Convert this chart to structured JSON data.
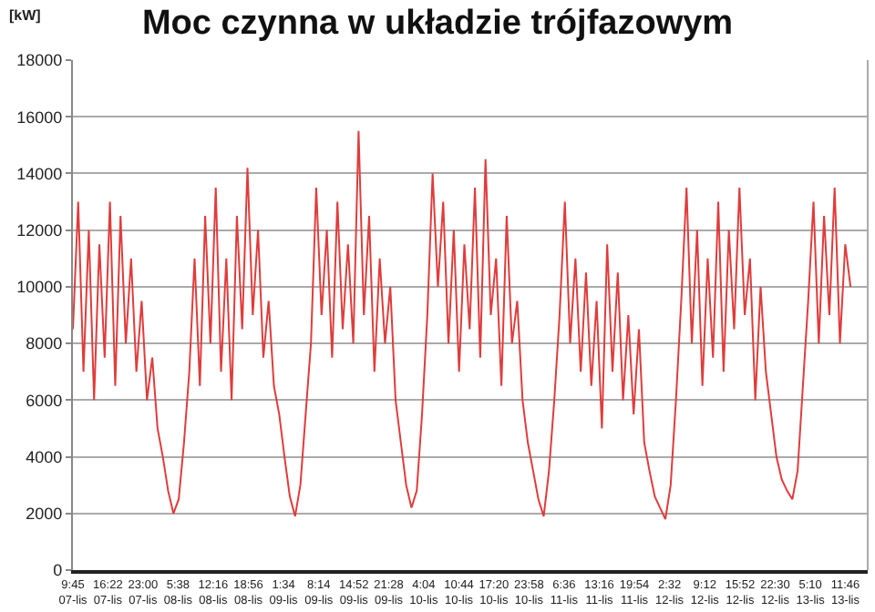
{
  "chart_data": {
    "type": "line",
    "title": "Moc czynna w układzie trójfazowym",
    "ylabel": "[kW]",
    "x": [
      "--11-07T09:45",
      "--11-07T10:45",
      "--11-07T11:45",
      "--11-07T12:45",
      "--11-07T13:45",
      "--11-07T14:45",
      "--11-07T15:45",
      "--11-07T16:45",
      "--11-07T17:45",
      "--11-07T18:45",
      "--11-07T19:45",
      "--11-07T20:45",
      "--11-07T21:45",
      "--11-07T22:45",
      "--11-07T23:45",
      "--11-08T00:45",
      "--11-08T01:45",
      "--11-08T02:45",
      "--11-08T03:45",
      "--11-08T04:45",
      "--11-08T05:45",
      "--11-08T06:45",
      "--11-08T07:45",
      "--11-08T08:45",
      "--11-08T09:45",
      "--11-08T10:45",
      "--11-08T11:45",
      "--11-08T12:45",
      "--11-08T13:45",
      "--11-08T14:45",
      "--11-08T15:45",
      "--11-08T16:45",
      "--11-08T17:45",
      "--11-08T18:45",
      "--11-08T19:45",
      "--11-08T20:45",
      "--11-08T21:45",
      "--11-08T22:45",
      "--11-08T23:45",
      "--11-09T00:45",
      "--11-09T01:45",
      "--11-09T02:45",
      "--11-09T03:45",
      "--11-09T04:45",
      "--11-09T05:45",
      "--11-09T06:45",
      "--11-09T07:45",
      "--11-09T08:45",
      "--11-09T09:45",
      "--11-09T10:45",
      "--11-09T11:45",
      "--11-09T12:45",
      "--11-09T13:45",
      "--11-09T14:45",
      "--11-09T15:45",
      "--11-09T16:45",
      "--11-09T17:45",
      "--11-09T18:45",
      "--11-09T19:45",
      "--11-09T20:45",
      "--11-09T21:45",
      "--11-09T22:45",
      "--11-09T23:45",
      "--11-10T00:45",
      "--11-10T01:45",
      "--11-10T02:45",
      "--11-10T03:45",
      "--11-10T04:45",
      "--11-10T05:45",
      "--11-10T06:45",
      "--11-10T07:45",
      "--11-10T08:45",
      "--11-10T09:45",
      "--11-10T10:45",
      "--11-10T11:45",
      "--11-10T12:45",
      "--11-10T13:45",
      "--11-10T14:45",
      "--11-10T15:45",
      "--11-10T16:45",
      "--11-10T17:45",
      "--11-10T18:45",
      "--11-10T19:45",
      "--11-10T20:45",
      "--11-10T21:45",
      "--11-10T22:45",
      "--11-10T23:45",
      "--11-11T00:45",
      "--11-11T01:45",
      "--11-11T02:45",
      "--11-11T03:45",
      "--11-11T04:45",
      "--11-11T05:45",
      "--11-11T06:45",
      "--11-11T07:45",
      "--11-11T08:45",
      "--11-11T09:45",
      "--11-11T10:45",
      "--11-11T11:45",
      "--11-11T12:45",
      "--11-11T13:45",
      "--11-11T14:45",
      "--11-11T15:45",
      "--11-11T16:45",
      "--11-11T17:45",
      "--11-11T18:45",
      "--11-11T19:45",
      "--11-11T20:45",
      "--11-11T21:45",
      "--11-11T22:45",
      "--11-11T23:45",
      "--11-12T00:45",
      "--11-12T01:45",
      "--11-12T02:45",
      "--11-12T03:45",
      "--11-12T04:45",
      "--11-12T05:45",
      "--11-12T06:45",
      "--11-12T07:45",
      "--11-12T08:45",
      "--11-12T09:45",
      "--11-12T10:45",
      "--11-12T11:45",
      "--11-12T12:45",
      "--11-12T13:45",
      "--11-12T14:45",
      "--11-12T15:45",
      "--11-12T16:45",
      "--11-12T17:45",
      "--11-12T18:45",
      "--11-12T19:45",
      "--11-12T20:45",
      "--11-12T21:45",
      "--11-12T22:45",
      "--11-12T23:45",
      "--11-13T00:45",
      "--11-13T01:45",
      "--11-13T02:45",
      "--11-13T03:45",
      "--11-13T04:45",
      "--11-13T05:45",
      "--11-13T06:45",
      "--11-13T07:45",
      "--11-13T08:45",
      "--11-13T09:45",
      "--11-13T10:45",
      "--11-13T11:45",
      "--11-13T12:45"
    ],
    "series": [
      {
        "color": "#e03c3c",
        "values": [
          8500,
          13000,
          7000,
          12000,
          6000,
          11500,
          7500,
          13000,
          6500,
          12500,
          8000,
          11000,
          7000,
          9500,
          6000,
          7500,
          5000,
          4000,
          2800,
          2000,
          2500,
          4500,
          7000,
          11000,
          6500,
          12500,
          8000,
          13500,
          7000,
          11000,
          6000,
          12500,
          8500,
          14200,
          9000,
          12000,
          7500,
          9500,
          6500,
          5500,
          4000,
          2600,
          1900,
          3000,
          5500,
          8000,
          13500,
          9000,
          12000,
          7500,
          13000,
          8500,
          11500,
          8000,
          15500,
          9000,
          12500,
          7000,
          11000,
          8000,
          10000,
          6000,
          4500,
          3000,
          2200,
          2800,
          5500,
          9000,
          14000,
          10000,
          13000,
          8000,
          12000,
          7000,
          11500,
          8500,
          13500,
          7500,
          14500,
          9000,
          11000,
          6500,
          12500,
          8000,
          9500,
          6000,
          4500,
          3500,
          2500,
          1900,
          3500,
          6000,
          9000,
          13000,
          8000,
          11000,
          7000,
          10500,
          6500,
          9500,
          5000,
          11500,
          7000,
          10500,
          6000,
          9000,
          5500,
          8500,
          4500,
          3500,
          2600,
          2200,
          1800,
          3000,
          6000,
          9500,
          13500,
          8000,
          12000,
          6500,
          11000,
          7500,
          13000,
          7000,
          12000,
          8500,
          13500,
          9000,
          11000,
          6000,
          10000,
          7000,
          5500,
          4000,
          3200,
          2800,
          2500,
          3500,
          6500,
          9500,
          13000,
          8000,
          12500,
          9000,
          13500,
          8000,
          11500,
          10000
        ]
      }
    ],
    "xlim": [
      "--11-07T09:45",
      "--11-13T16:00"
    ],
    "xticks": [
      {
        "value": "--11-07T09:45",
        "label": "9:45\n07-lis"
      },
      {
        "value": "--11-07T16:22",
        "label": "16:22\n07-lis"
      },
      {
        "value": "--11-07T23:00",
        "label": "23:00\n07-lis"
      },
      {
        "value": "--11-08T05:38",
        "label": "5:38\n08-lis"
      },
      {
        "value": "--11-08T12:16",
        "label": "12:16\n08-lis"
      },
      {
        "value": "--11-08T18:56",
        "label": "18:56\n08-lis"
      },
      {
        "value": "--11-09T01:34",
        "label": "1:34\n09-lis"
      },
      {
        "value": "--11-09T08:14",
        "label": "8:14\n09-lis"
      },
      {
        "value": "--11-09T14:52",
        "label": "14:52\n09-lis"
      },
      {
        "value": "--11-09T21:28",
        "label": "21:28\n09-lis"
      },
      {
        "value": "--11-10T04:04",
        "label": "4:04\n10-lis"
      },
      {
        "value": "--11-10T10:44",
        "label": "10:44\n10-lis"
      },
      {
        "value": "--11-10T17:20",
        "label": "17:20\n10-lis"
      },
      {
        "value": "--11-10T23:58",
        "label": "23:58\n10-lis"
      },
      {
        "value": "--11-11T06:36",
        "label": "6:36\n11-lis"
      },
      {
        "value": "--11-11T13:16",
        "label": "13:16\n11-lis"
      },
      {
        "value": "--11-11T19:54",
        "label": "19:54\n11-lis"
      },
      {
        "value": "--11-12T02:32",
        "label": "2:32\n12-lis"
      },
      {
        "value": "--11-12T09:12",
        "label": "9:12\n12-lis"
      },
      {
        "value": "--11-12T15:52",
        "label": "15:52\n12-lis"
      },
      {
        "value": "--11-12T22:30",
        "label": "22:30\n12-lis"
      },
      {
        "value": "--11-13T05:10",
        "label": "5:10\n13-lis"
      },
      {
        "value": "--11-13T11:46",
        "label": "11:46\n13-lis"
      }
    ],
    "ylim": [
      0,
      18000
    ],
    "yticks": [
      0,
      2000,
      4000,
      6000,
      8000,
      10000,
      12000,
      14000,
      16000,
      18000
    ],
    "grid": "y",
    "legend": false,
    "marker": "none",
    "line_style": "solid"
  }
}
